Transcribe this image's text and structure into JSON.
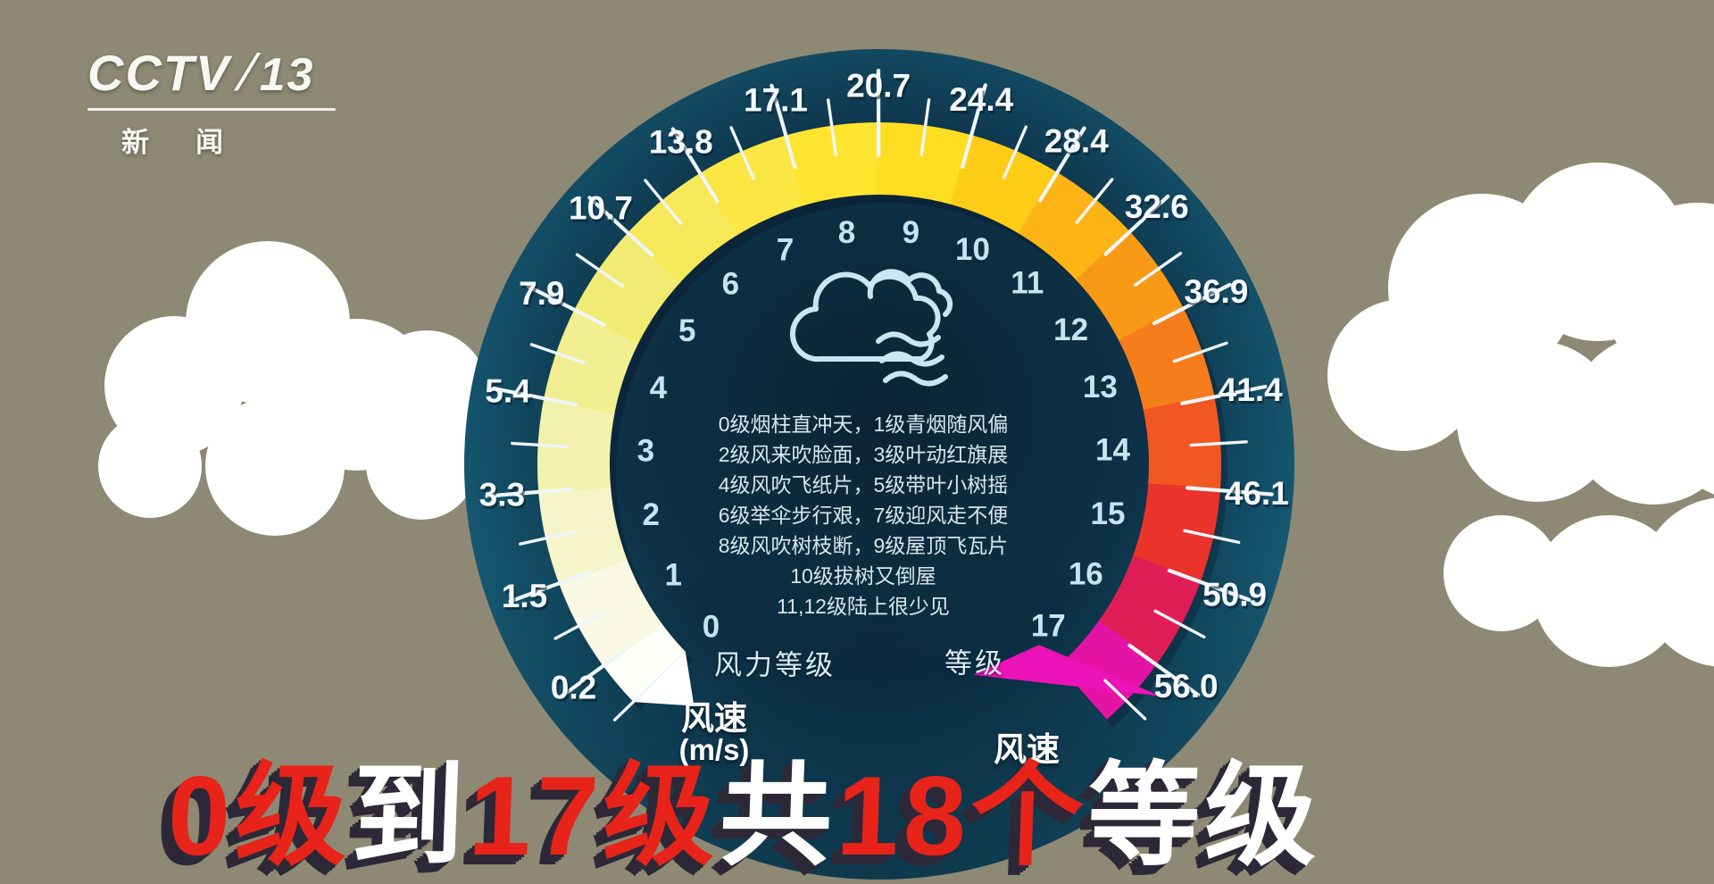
{
  "channel": {
    "name": "CCTV",
    "separator": "/",
    "number": "13",
    "subtitle": "新闻"
  },
  "headline": {
    "segments": [
      {
        "text": "0级",
        "color": "#e8231a"
      },
      {
        "text": "到",
        "color": "#ffffff"
      },
      {
        "text": "17级",
        "color": "#e8231a"
      },
      {
        "text": "共",
        "color": "#ffffff"
      },
      {
        "text": "18个",
        "color": "#e8231a"
      },
      {
        "text": "等级",
        "color": "#ffffff"
      }
    ]
  },
  "gauge": {
    "inner_scale_label": "风力等级",
    "inner_scale_label_right": "等级",
    "outer_scale_label": "风速",
    "outer_scale_unit": "(m/s)",
    "outer_scale_label_right": "风速",
    "levels": [
      "0",
      "1",
      "2",
      "3",
      "4",
      "5",
      "6",
      "7",
      "8",
      "9",
      "10",
      "11",
      "12",
      "13",
      "14",
      "15",
      "16",
      "17"
    ],
    "speeds": [
      "0.2",
      "1.5",
      "3.3",
      "5.4",
      "7.9",
      "10.7",
      "13.8",
      "17.1",
      "20.7",
      "24.4",
      "28.4",
      "32.6",
      "36.9",
      "41.4",
      "46.1",
      "50.9",
      "56.0"
    ],
    "level_colors": [
      "#fefef8",
      "#faf9e4",
      "#f6f5c9",
      "#f3f2ac",
      "#f1ef90",
      "#f1eb73",
      "#f5e95a",
      "#fae744",
      "#ffe530",
      "#ffdd22",
      "#ffcd18",
      "#fdb414",
      "#f99a17",
      "#f67d1c",
      "#f25722",
      "#ea332b",
      "#e11d57",
      "#e413a6"
    ],
    "start_cap_color": "#ffffff",
    "end_arrow_color": "#ec13b8",
    "description_lines": [
      "0级烟柱直冲天，1级青烟随风偏",
      "2级风来吹脸面，3级叶动红旗展",
      "4级风吹飞纸片，5级带叶小树摇",
      "6级举伞步行艰，7级迎风走不便",
      "8级风吹树枝断，9级屋顶飞瓦片",
      "10级拔树又倒屋",
      "11,12级陆上很少见"
    ]
  },
  "colors": {
    "background": "#8e8974",
    "disc_center": "#0b2434",
    "disc_mid": "#0d3147",
    "disc_edge": "#1b6781",
    "tick": "#eef6f9",
    "speed_label": "#f3f9fc",
    "level_label": "#c8e3f0",
    "description_text": "#d6e7ee",
    "cloud": "#ffffff",
    "icon_stroke": "#c9e6f2",
    "banner_shadow": "#2d2837"
  },
  "chart_data": {
    "type": "gauge",
    "inner_scale": {
      "label": "风力等级（等级）",
      "values": [
        0,
        1,
        2,
        3,
        4,
        5,
        6,
        7,
        8,
        9,
        10,
        11,
        12,
        13,
        14,
        15,
        16,
        17
      ]
    },
    "outer_scale": {
      "label": "风速 (m/s)",
      "boundary_values": [
        0.2,
        1.5,
        3.3,
        5.4,
        7.9,
        10.7,
        13.8,
        17.1,
        20.7,
        24.4,
        28.4,
        32.6,
        36.9,
        41.4,
        46.1,
        50.9,
        56.0
      ]
    },
    "annotations": [
      "0级烟柱直冲天，1级青烟随风偏",
      "2级风来吹脸面，3级叶动红旗展",
      "4级风吹飞纸片，5级带叶小树摇",
      "6级举伞步行艰，7级迎风走不便",
      "8级风吹树枝断，9级屋顶飞瓦片",
      "10级拔树又倒屋",
      "11,12级陆上很少见",
      "0级到17级共18个等级"
    ],
    "layout": {
      "start_position": "lower-left",
      "direction": "clockwise",
      "sweep_degrees": 268,
      "color_gradient": [
        "#ffffff",
        "#ffe530",
        "#f99a17",
        "#ea332b",
        "#e413a6"
      ]
    }
  }
}
